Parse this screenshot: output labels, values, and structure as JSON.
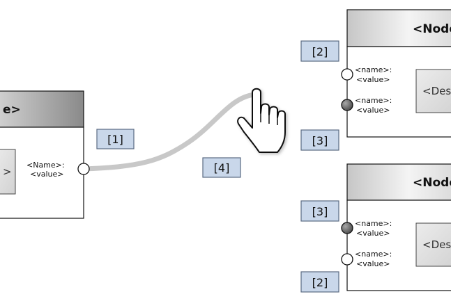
{
  "nodes": {
    "left": {
      "title": "e>",
      "description": ">",
      "port": {
        "name": "<Name>:",
        "value": "<value>"
      }
    },
    "top_right": {
      "title": "<Node",
      "description": "<Des",
      "ports": [
        {
          "name": "<name>:",
          "value": "<value>",
          "type": "open"
        },
        {
          "name": "<name>:",
          "value": "<value>",
          "type": "filled"
        }
      ]
    },
    "bottom_right": {
      "title": "<Node",
      "description": "<Des",
      "ports": [
        {
          "name": "<name>:",
          "value": "<value>",
          "type": "filled"
        },
        {
          "name": "<name>:",
          "value": "<value>",
          "type": "open"
        }
      ]
    }
  },
  "callouts": {
    "c1": "[1]",
    "c2_top": "[2]",
    "c3_top": "[3]",
    "c4": "[4]",
    "c3_bottom": "[3]",
    "c2_bottom": "[2]"
  },
  "colors": {
    "callout_fill": "#c9d7ea",
    "callout_stroke": "#5a6a82",
    "wire": "#c8c8c8",
    "port_filled": "#6e6e6e",
    "header_left": "#9a9a9a",
    "header_right_light": "#f2f2f2",
    "header_right_dark": "#c4c4c4"
  },
  "cursor_icon": "hand-pointer-icon"
}
